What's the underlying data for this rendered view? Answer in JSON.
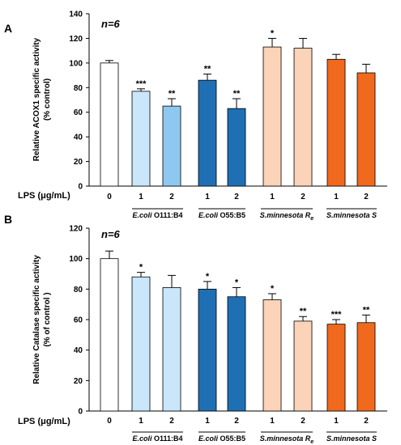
{
  "chart_data": [
    {
      "type": "bar",
      "panel_label": "A",
      "annotation": "n=6",
      "ylabel_lines": [
        "Relative ACOX1 specific activity",
        "(% control)"
      ],
      "ylim": [
        0,
        140
      ],
      "yticks": [
        0,
        20,
        40,
        60,
        80,
        100,
        120,
        140
      ],
      "xlabel": "LPS (μg/mL)",
      "categories": [
        "0",
        "1",
        "2",
        "1",
        "2",
        "1",
        "2",
        "1",
        "2"
      ],
      "values": [
        100,
        77,
        65,
        86,
        63,
        113,
        112,
        103,
        92
      ],
      "errors": [
        2,
        2,
        6,
        5,
        8,
        7,
        8,
        4,
        7
      ],
      "significance": [
        "",
        "***",
        "**",
        "**",
        "**",
        "*",
        "",
        "",
        ""
      ],
      "bar_colors": [
        "#ffffff",
        "#c9e6fb",
        "#8ec8f0",
        "#1f6fb5",
        "#1f6fb5",
        "#fbd3b8",
        "#fbd3b8",
        "#f0691c",
        "#f0691c"
      ],
      "groups": [
        {
          "italic": "E.coli",
          "plain": " O111:B4",
          "sub": ""
        },
        {
          "italic": "E.coli",
          "plain": " O55:B5",
          "sub": ""
        },
        {
          "italic": "S.minnesota R",
          "plain": "",
          "sub": "e"
        },
        {
          "italic": "S.minnesota S",
          "plain": "",
          "sub": ""
        }
      ]
    },
    {
      "type": "bar",
      "panel_label": "B",
      "annotation": "n=6",
      "ylabel_lines": [
        "Relative Catalase specific activity",
        "(% of control )"
      ],
      "ylim": [
        0,
        120
      ],
      "yticks": [
        0,
        20,
        40,
        60,
        80,
        100,
        120
      ],
      "xlabel": "LPS (μg/mL)",
      "categories": [
        "0",
        "1",
        "2",
        "1",
        "2",
        "1",
        "2",
        "1",
        "2"
      ],
      "values": [
        100,
        88,
        81,
        80,
        75,
        73,
        59,
        57,
        58
      ],
      "errors": [
        5,
        3,
        8,
        5,
        6,
        4,
        3,
        3,
        5
      ],
      "significance": [
        "",
        "*",
        "",
        "*",
        "*",
        "*",
        "**",
        "***",
        "**"
      ],
      "bar_colors": [
        "#ffffff",
        "#c9e6fb",
        "#c9e6fb",
        "#1f6fb5",
        "#1f6fb5",
        "#fbd3b8",
        "#fbd3b8",
        "#f0691c",
        "#f0691c"
      ],
      "groups": [
        {
          "italic": "E.coli",
          "plain": " O111:B4",
          "sub": ""
        },
        {
          "italic": "E.coli",
          "plain": " O55:B5",
          "sub": ""
        },
        {
          "italic": "S.minnesota R",
          "plain": "",
          "sub": "e"
        },
        {
          "italic": "S.minnesota S",
          "plain": "",
          "sub": ""
        }
      ]
    }
  ]
}
